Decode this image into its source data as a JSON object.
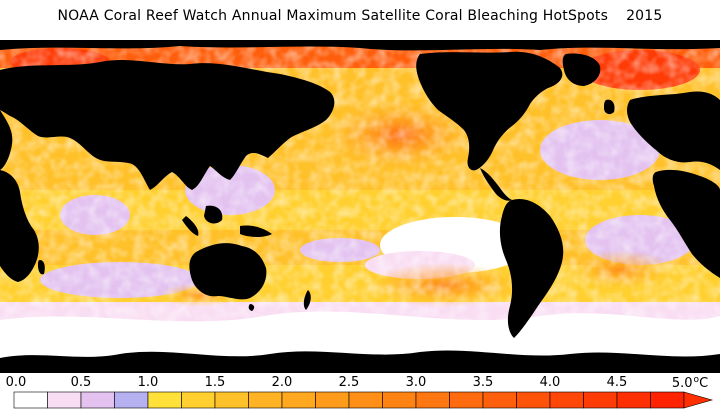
{
  "map": {
    "title": "NOAA Coral Reef Watch Annual Maximum Satellite Coral Bleaching HotSpots",
    "year": "2015"
  },
  "legend": {
    "tick_labels": [
      "0.0",
      "0.5",
      "1.0",
      "1.5",
      "2.0",
      "2.5",
      "3.0",
      "3.5",
      "4.0",
      "4.5",
      "5.0"
    ],
    "unit_degree": "o",
    "unit_c": "C",
    "bins": [
      {
        "min": 0.0,
        "max": 0.25,
        "color": "#ffffff"
      },
      {
        "min": 0.25,
        "max": 0.5,
        "color": "#f9ddf3"
      },
      {
        "min": 0.5,
        "max": 0.75,
        "color": "#e3c2f0"
      },
      {
        "min": 0.75,
        "max": 1.0,
        "color": "#b5b0ef"
      },
      {
        "min": 1.0,
        "max": 1.25,
        "color": "#ffe13a"
      },
      {
        "min": 1.25,
        "max": 1.5,
        "color": "#ffd030"
      },
      {
        "min": 1.5,
        "max": 1.75,
        "color": "#ffc12a"
      },
      {
        "min": 1.75,
        "max": 2.0,
        "color": "#ffb324"
      },
      {
        "min": 2.0,
        "max": 2.25,
        "color": "#ffa71f"
      },
      {
        "min": 2.25,
        "max": 2.5,
        "color": "#ff9b1a"
      },
      {
        "min": 2.5,
        "max": 2.75,
        "color": "#ff8f16"
      },
      {
        "min": 2.75,
        "max": 3.0,
        "color": "#ff8312"
      },
      {
        "min": 3.0,
        "max": 3.25,
        "color": "#ff7710"
      },
      {
        "min": 3.25,
        "max": 3.5,
        "color": "#ff6b0e"
      },
      {
        "min": 3.5,
        "max": 3.75,
        "color": "#ff5f0c"
      },
      {
        "min": 3.75,
        "max": 4.0,
        "color": "#ff530a"
      },
      {
        "min": 4.0,
        "max": 4.25,
        "color": "#ff4708"
      },
      {
        "min": 4.25,
        "max": 4.5,
        "color": "#ff3b06"
      },
      {
        "min": 4.5,
        "max": 4.75,
        "color": "#ff2f04"
      },
      {
        "min": 4.75,
        "max": 5.0,
        "color": "#ff2302"
      }
    ],
    "overflow_color": "#ff3000",
    "land_color": "#000000"
  }
}
